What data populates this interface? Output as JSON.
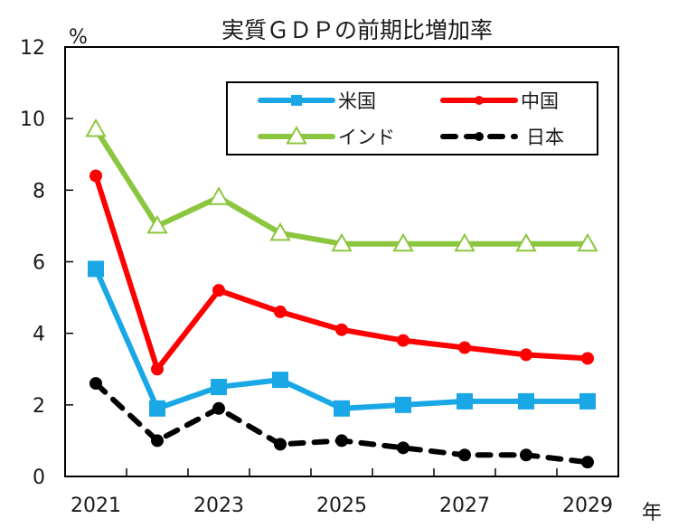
{
  "chart_data": {
    "type": "line",
    "title": "実質ＧＤＰの前期比増加率",
    "ylabel": "%",
    "xlabel": "年",
    "ylim": [
      0,
      12
    ],
    "yticks": [
      0,
      2,
      4,
      6,
      8,
      10,
      12
    ],
    "x": [
      2021,
      2022,
      2023,
      2024,
      2025,
      2026,
      2027,
      2028,
      2029
    ],
    "xtick_labels": [
      "2021",
      "2023",
      "2025",
      "2027",
      "2029"
    ],
    "grid": false,
    "legend_position": "top-right",
    "series": [
      {
        "name": "米国",
        "color": "#1aa7e6",
        "marker": "square",
        "dash": false,
        "values": [
          5.8,
          1.9,
          2.5,
          2.7,
          1.9,
          2.0,
          2.1,
          2.1,
          2.1
        ]
      },
      {
        "name": "中国",
        "color": "#ff0000",
        "marker": "circle",
        "dash": false,
        "values": [
          8.4,
          3.0,
          5.2,
          4.6,
          4.1,
          3.8,
          3.6,
          3.4,
          3.3
        ]
      },
      {
        "name": "インド",
        "color": "#8cc63f",
        "marker": "triangle-open",
        "dash": false,
        "values": [
          9.7,
          7.0,
          7.8,
          6.8,
          6.5,
          6.5,
          6.5,
          6.5,
          6.5
        ]
      },
      {
        "name": "日本",
        "color": "#000000",
        "marker": "circle",
        "dash": true,
        "values": [
          2.6,
          1.0,
          1.9,
          0.9,
          1.0,
          0.8,
          0.6,
          0.6,
          0.4
        ]
      }
    ]
  }
}
